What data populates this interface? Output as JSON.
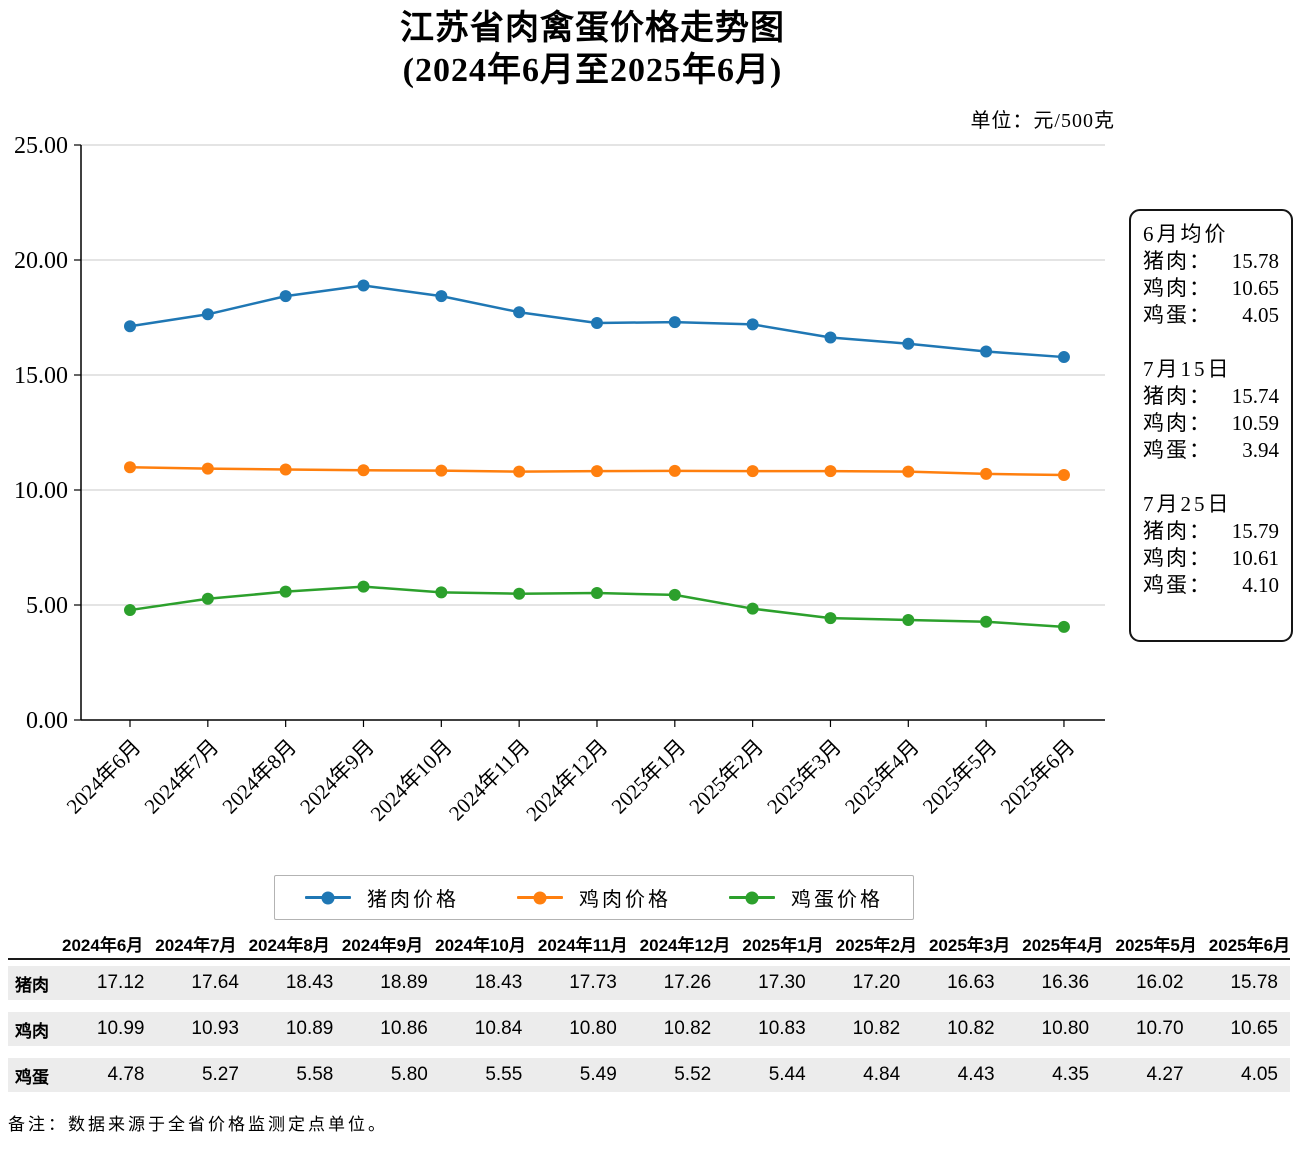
{
  "title": {
    "line1": "江苏省肉禽蛋价格走势图",
    "line2": "(2024年6月至2025年6月)"
  },
  "unit_label": "单位：元/500克",
  "chart_data": {
    "type": "line",
    "title": "江苏省肉禽蛋价格走势图(2024年6月至2025年6月)",
    "unit": "元/500克",
    "categories": [
      "2024年6月",
      "2024年7月",
      "2024年8月",
      "2024年9月",
      "2024年10月",
      "2024年11月",
      "2024年12月",
      "2025年1月",
      "2025年2月",
      "2025年3月",
      "2025年4月",
      "2025年5月",
      "2025年6月"
    ],
    "series": [
      {
        "name": "猪肉价格",
        "color": "#1f77b4",
        "values": [
          17.12,
          17.64,
          18.43,
          18.89,
          18.43,
          17.73,
          17.26,
          17.3,
          17.2,
          16.63,
          16.36,
          16.02,
          15.78
        ]
      },
      {
        "name": "鸡肉价格",
        "color": "#ff7f0e",
        "values": [
          10.99,
          10.93,
          10.89,
          10.86,
          10.84,
          10.8,
          10.82,
          10.83,
          10.82,
          10.82,
          10.8,
          10.7,
          10.65
        ]
      },
      {
        "name": "鸡蛋价格",
        "color": "#2ca02c",
        "values": [
          4.78,
          5.27,
          5.58,
          5.8,
          5.55,
          5.49,
          5.52,
          5.44,
          4.84,
          4.43,
          4.35,
          4.27,
          4.05
        ]
      }
    ],
    "ylim": [
      0,
      25
    ],
    "ytick_labels": [
      "0.00",
      "5.00",
      "10.00",
      "15.00",
      "20.00",
      "25.00"
    ],
    "grid": true,
    "gridline_color": "#c8c8c8",
    "legend_position": "bottom"
  },
  "annotation_box": {
    "groups": [
      {
        "heading": "6月均价",
        "rows": [
          {
            "label": "猪肉：",
            "value": "15.78"
          },
          {
            "label": "鸡肉：",
            "value": "10.65"
          },
          {
            "label": "鸡蛋：",
            "value": "4.05"
          }
        ]
      },
      {
        "heading": "7月15日",
        "rows": [
          {
            "label": "猪肉：",
            "value": "15.74"
          },
          {
            "label": "鸡肉：",
            "value": "10.59"
          },
          {
            "label": "鸡蛋：",
            "value": "3.94"
          }
        ]
      },
      {
        "heading": "7月25日",
        "rows": [
          {
            "label": "猪肉：",
            "value": "15.79"
          },
          {
            "label": "鸡肉：",
            "value": "10.61"
          },
          {
            "label": "鸡蛋：",
            "value": "4.10"
          }
        ]
      }
    ]
  },
  "table": {
    "corner_label": "",
    "columns": [
      "2024年6月",
      "2024年7月",
      "2024年8月",
      "2024年9月",
      "2024年10月",
      "2024年11月",
      "2024年12月",
      "2025年1月",
      "2025年2月",
      "2025年3月",
      "2025年4月",
      "2025年5月",
      "2025年6月"
    ],
    "rows": [
      {
        "label": "猪肉",
        "values": [
          "17.12",
          "17.64",
          "18.43",
          "18.89",
          "18.43",
          "17.73",
          "17.26",
          "17.30",
          "17.20",
          "16.63",
          "16.36",
          "16.02",
          "15.78"
        ]
      },
      {
        "label": "鸡肉",
        "values": [
          "10.99",
          "10.93",
          "10.89",
          "10.86",
          "10.84",
          "10.80",
          "10.82",
          "10.83",
          "10.82",
          "10.82",
          "10.80",
          "10.70",
          "10.65"
        ]
      },
      {
        "label": "鸡蛋",
        "values": [
          "4.78",
          "5.27",
          "5.58",
          "5.80",
          "5.55",
          "5.49",
          "5.52",
          "5.44",
          "4.84",
          "4.43",
          "4.35",
          "4.27",
          "4.05"
        ]
      }
    ]
  },
  "footnote": "备注：数据来源于全省价格监测定点单位。"
}
